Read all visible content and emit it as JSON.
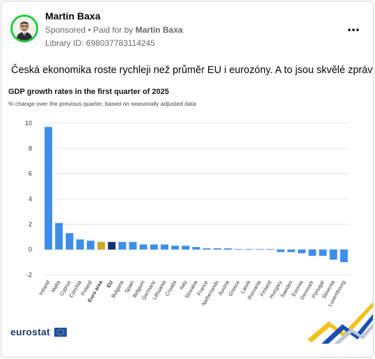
{
  "post": {
    "author": "Martin Baxa",
    "sponsored_label": "Sponsored",
    "paid_for_prefix": "• Paid for by",
    "paid_for_by": "Martin Baxa",
    "library_id": "Library ID: 698037783114245",
    "more_icon": "more-horizontal-icon",
    "text": "Česká ekonomika roste rychleji než průměr EU i eurozóny. A to jsou skvělé zprávy!"
  },
  "brand": {
    "logo_text": "eurostat",
    "flag_icon": "eu-flag-icon"
  },
  "colors": {
    "bar_default": "#3d8ee8",
    "bar_euro_area": "#c9a82a",
    "bar_eu": "#13306b",
    "grid": "#e2e5ea",
    "avatar_ring": "#1fcc3a"
  },
  "chart_data": {
    "type": "bar",
    "title": "GDP growth rates in the first quarter of 2025",
    "subtitle": "% change over the previous quarter, based on seasonally adjusted data",
    "xlabel": "",
    "ylabel": "",
    "ylim": [
      -2,
      10
    ],
    "yticks": [
      -2,
      0,
      2,
      4,
      6,
      8,
      10
    ],
    "grid": true,
    "categories": [
      "Ireland",
      "Malta",
      "Cyprus",
      "Czechia",
      "Poland",
      "Euro area",
      "EU",
      "Bulgaria",
      "Spain",
      "Belgium",
      "Germany",
      "Lithuania",
      "Croatia",
      "Italy",
      "Slovakia",
      "France",
      "Netherlands",
      "Austria",
      "Greece",
      "Latvia",
      "Romania",
      "Finland",
      "Hungary",
      "Sweden",
      "Estonia",
      "Denmark",
      "Portugal",
      "Slovenia",
      "Luxembourg"
    ],
    "bold_categories": [
      "Euro area",
      "EU"
    ],
    "values": [
      9.7,
      2.1,
      1.3,
      0.8,
      0.7,
      0.6,
      0.6,
      0.6,
      0.6,
      0.4,
      0.4,
      0.4,
      0.3,
      0.3,
      0.2,
      0.1,
      0.1,
      0.1,
      0.0,
      0.0,
      0.0,
      0.0,
      -0.2,
      -0.2,
      -0.3,
      -0.5,
      -0.5,
      -0.8,
      -1.0
    ]
  }
}
